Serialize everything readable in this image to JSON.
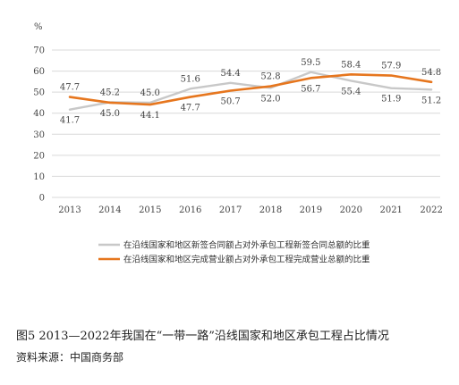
{
  "chart_data": {
    "type": "line",
    "unit_label": "%",
    "categories": [
      "2013",
      "2014",
      "2015",
      "2016",
      "2017",
      "2018",
      "2019",
      "2020",
      "2021",
      "2022"
    ],
    "ylim": [
      0,
      70
    ],
    "yticks": [
      "0",
      "10",
      "20",
      "30",
      "40",
      "50",
      "60",
      "70"
    ],
    "grid": true,
    "legend_position": "bottom",
    "series": [
      {
        "name": "在沿线国家和地区新签合同额占对外承包工程新签合同总额的比重",
        "color": "#c8c8c8",
        "values": [
          41.7,
          45.2,
          45.0,
          51.6,
          54.4,
          52.0,
          59.5,
          55.4,
          51.9,
          51.2
        ],
        "labels": [
          "41.7",
          "45.2",
          "45.0",
          "51.6",
          "54.4",
          "52.0",
          "59.5",
          "55.4",
          "51.9",
          "51.2"
        ]
      },
      {
        "name": "在沿线国家和地区完成营业额占对外承包工程完成营业总额的比重",
        "color": "#e6761e",
        "values": [
          47.7,
          45.0,
          44.1,
          47.7,
          50.7,
          52.8,
          56.7,
          58.4,
          57.9,
          54.8
        ],
        "labels": [
          "47.7",
          "45.0",
          "44.1",
          "47.7",
          "50.7",
          "52.8",
          "56.7",
          "58.4",
          "57.9",
          "54.8"
        ]
      }
    ]
  },
  "caption": "图5  2013—2022年我国在“一带一路”沿线国家和地区承包工程占比情况",
  "source": "资料来源：中国商务部"
}
